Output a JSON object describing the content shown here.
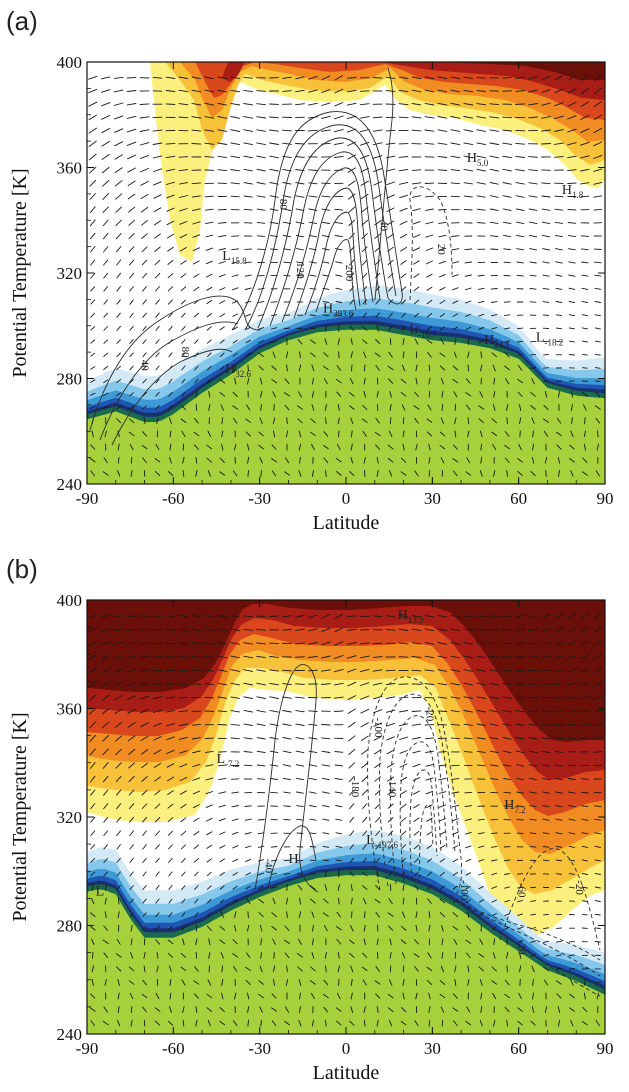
{
  "figure": {
    "panels": [
      {
        "letter": "(a)",
        "x_ticks": [
          "-90",
          "-60",
          "-30",
          "0",
          "30",
          "60",
          "90"
        ],
        "y_ticks": [
          "240",
          "280",
          "320",
          "360",
          "400"
        ],
        "xlabel": "Latitude",
        "ylabel": "Potential Temperature [K]",
        "extrema": [
          {
            "letter": "H",
            "sub": "5.0",
            "lat": 42,
            "theta": 362
          },
          {
            "letter": "H",
            "sub": "1.8",
            "lat": 75,
            "theta": 350
          },
          {
            "letter": "L",
            "sub": "15.8",
            "lat": -43,
            "theta": 325
          },
          {
            "letter": "H",
            "sub": "293.6",
            "lat": -8,
            "theta": 305
          },
          {
            "letter": "L",
            "sub": "-16.7",
            "lat": 22,
            "theta": 297
          },
          {
            "letter": "H",
            "sub": "24.1",
            "lat": 48,
            "theta": 293
          },
          {
            "letter": "L",
            "sub": "-18.2",
            "lat": 66,
            "theta": 294
          },
          {
            "letter": "H",
            "sub": "32.6",
            "lat": -42,
            "theta": 282
          }
        ],
        "contour_labels": [
          {
            "text": "80",
            "lat": -23,
            "theta": 346
          },
          {
            "text": "120",
            "lat": -17,
            "theta": 321
          },
          {
            "text": "200",
            "lat": 0,
            "theta": 320
          },
          {
            "text": "40",
            "lat": 12,
            "theta": 338
          },
          {
            "text": "20",
            "lat": 32,
            "theta": 329
          },
          {
            "text": "80",
            "lat": -57,
            "theta": 290
          },
          {
            "text": "40",
            "lat": -71,
            "theta": 285
          }
        ]
      },
      {
        "letter": "(b)",
        "x_ticks": [
          "-90",
          "-60",
          "-30",
          "0",
          "30",
          "60",
          "90"
        ],
        "y_ticks": [
          "240",
          "280",
          "320",
          "360",
          "400"
        ],
        "xlabel": "Latitude",
        "ylabel": "Potential Temperature [K]",
        "extrema": [
          {
            "letter": "H",
            "sub": "13.9",
            "lat": 18,
            "theta": 393
          },
          {
            "letter": "L",
            "sub": "-7.2",
            "lat": -45,
            "theta": 340
          },
          {
            "letter": "H",
            "sub": "7.2",
            "lat": 55,
            "theta": 323
          },
          {
            "letter": "L",
            "sub": "-197.6",
            "lat": 7,
            "theta": 310
          },
          {
            "letter": "H",
            "sub": "",
            "lat": -20,
            "theta": 303
          },
          {
            "letter": "L",
            "sub": "",
            "lat": -87,
            "theta": 291
          }
        ],
        "contour_labels": [
          {
            "text": "-100",
            "lat": 10,
            "theta": 353
          },
          {
            "text": "-20",
            "lat": 28,
            "theta": 358
          },
          {
            "text": "-180",
            "lat": 2,
            "theta": 331
          },
          {
            "text": "-140",
            "lat": 15,
            "theta": 331
          },
          {
            "text": "-40",
            "lat": -28,
            "theta": 302
          },
          {
            "text": "-100",
            "lat": 40,
            "theta": 293
          },
          {
            "text": "-60",
            "lat": 60,
            "theta": 293
          },
          {
            "text": "-20",
            "lat": 80,
            "theta": 294
          },
          {
            "text": "-20",
            "lat": 60,
            "theta": 272
          }
        ]
      }
    ]
  },
  "chart_data": [
    {
      "type": "heatmap",
      "panel": "(a)",
      "title": "",
      "xlabel": "Latitude",
      "ylabel": "Potential Temperature [K]",
      "xlim": [
        -90,
        90
      ],
      "ylim": [
        240,
        400
      ],
      "surface_theta": {
        "lat": [
          -90,
          -80,
          -70,
          -65,
          -60,
          -50,
          -40,
          -30,
          -20,
          -10,
          0,
          10,
          20,
          30,
          40,
          50,
          60,
          70,
          80,
          90
        ],
        "theta": [
          266,
          269,
          265,
          265,
          268,
          276,
          283,
          291,
          296,
          299,
          300,
          300,
          298,
          296,
          295,
          293,
          289,
          278,
          275,
          274
        ]
      },
      "positive_contour_levels": [
        20,
        40,
        80,
        120,
        160,
        200,
        240,
        280
      ],
      "extrema": [
        "H 5.0",
        "H 1.8",
        "L 15.8",
        "H 293.6",
        "L -16.7",
        "H 24.1",
        "L -18.2",
        "H 32.6"
      ],
      "grid": false
    },
    {
      "type": "heatmap",
      "panel": "(b)",
      "title": "",
      "xlabel": "Latitude",
      "ylabel": "Potential Temperature [K]",
      "xlim": [
        -90,
        90
      ],
      "ylim": [
        240,
        400
      ],
      "surface_theta": {
        "lat": [
          -90,
          -85,
          -80,
          -75,
          -70,
          -65,
          -60,
          -50,
          -40,
          -30,
          -20,
          -10,
          0,
          10,
          20,
          30,
          40,
          50,
          60,
          70,
          80,
          90
        ],
        "theta": [
          294,
          295,
          293,
          284,
          277,
          277,
          277,
          281,
          287,
          292,
          296,
          299,
          300,
          300,
          297,
          293,
          287,
          279,
          272,
          265,
          261,
          256
        ]
      },
      "negative_contour_levels": [
        -20,
        -40,
        -60,
        -100,
        -140,
        -180
      ],
      "extrema": [
        "H 13.9",
        "L -7.2",
        "H 7.2",
        "L -197.6",
        "H",
        "L"
      ],
      "grid": false
    }
  ],
  "colors": {
    "land": "#a6d13c",
    "ocean_shades": [
      "#d3eaf6",
      "#85c8ec",
      "#3d9ad6",
      "#1f55b3",
      "#18306e",
      "#1a6a4c",
      "#2f8f3c"
    ],
    "heat_shades": [
      "#fbef7e",
      "#f7c13a",
      "#f08c22",
      "#d9471d",
      "#a81d16",
      "#6a1009"
    ],
    "contour": "#2b2b2b",
    "arrow": "#1a1a1a"
  }
}
